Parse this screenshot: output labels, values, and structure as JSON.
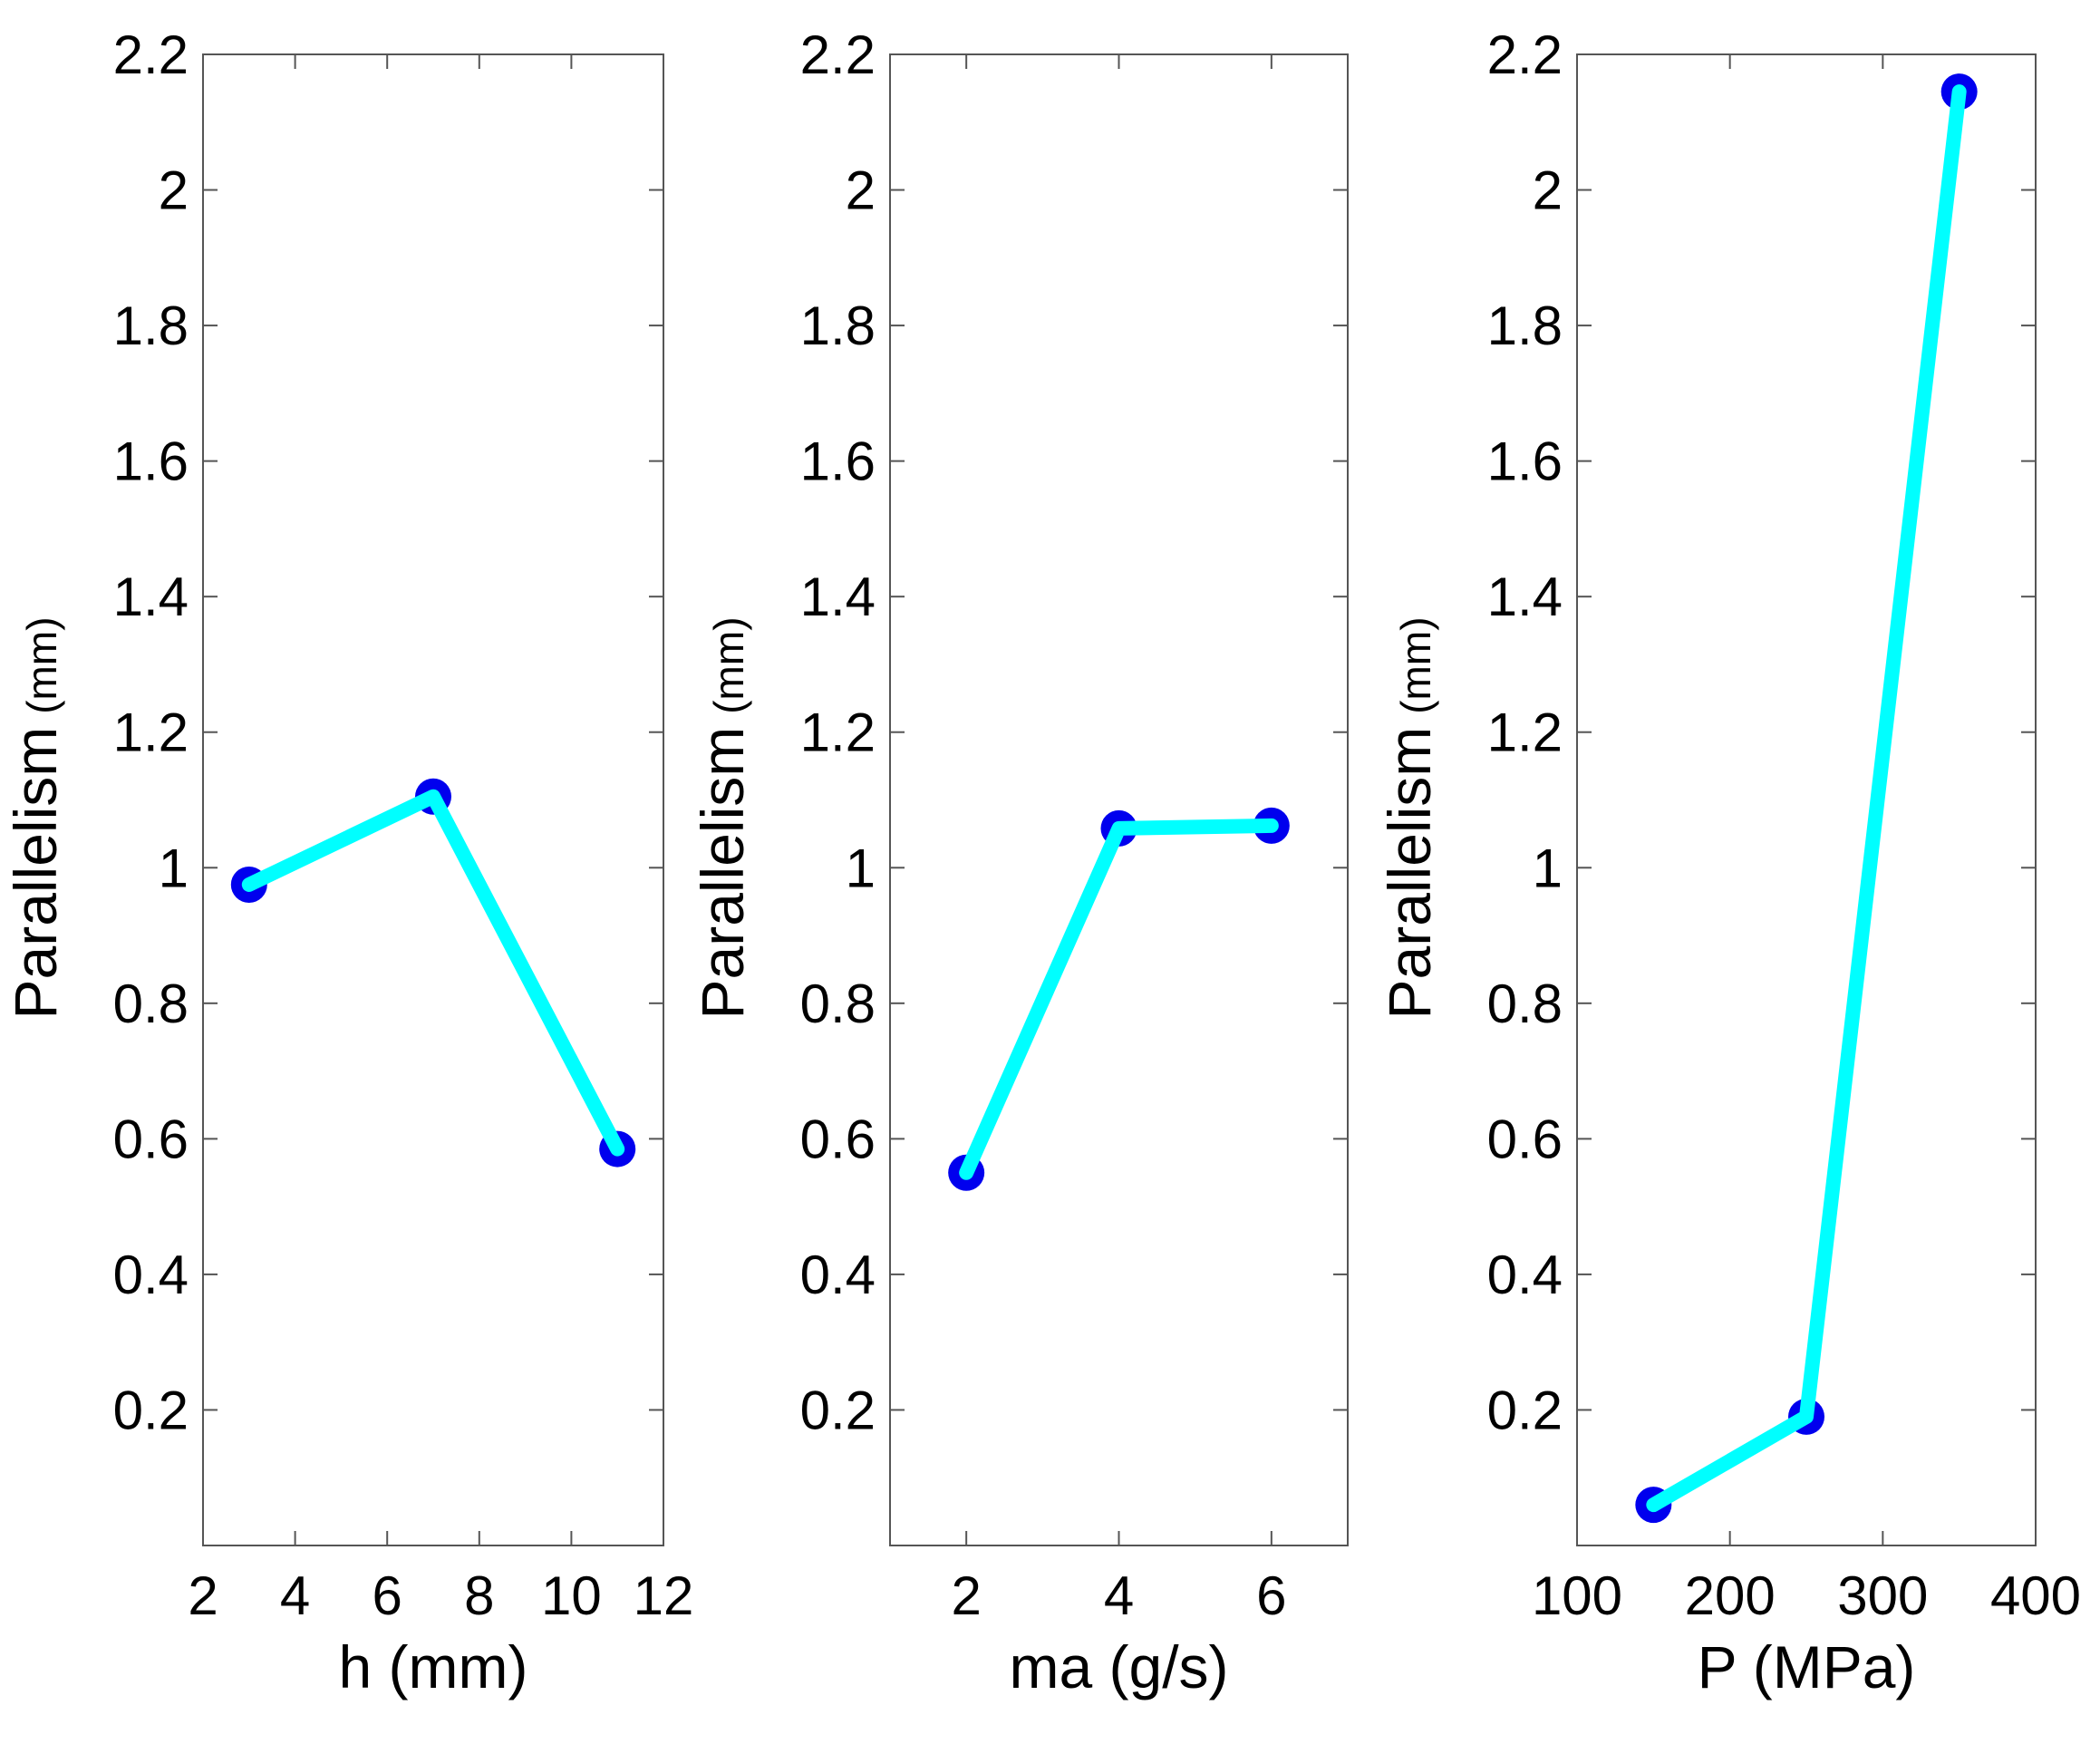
{
  "chart_data": [
    {
      "type": "line",
      "xlabel": "h (mm)",
      "ylabel": "Parallelism",
      "ylabel_unit": "(mm)",
      "xlim": [
        2,
        12
      ],
      "ylim": [
        0,
        2.2
      ],
      "xticks": [
        2,
        4,
        6,
        8,
        10,
        12
      ],
      "yticks": [
        0.2,
        0.4,
        0.6,
        0.8,
        1,
        1.2,
        1.4,
        1.6,
        1.8,
        2,
        2.2
      ],
      "x": [
        3,
        7,
        11
      ],
      "values": [
        0.975,
        1.105,
        0.585
      ],
      "line_color": "#00ffff",
      "marker_color": "#0000ee"
    },
    {
      "type": "line",
      "xlabel": "ma (g/s)",
      "ylabel": "Parallelism",
      "ylabel_unit": "(mm)",
      "xlim": [
        1,
        7
      ],
      "ylim": [
        0,
        2.2
      ],
      "xticks": [
        2,
        4,
        6
      ],
      "yticks": [
        0.2,
        0.4,
        0.6,
        0.8,
        1,
        1.2,
        1.4,
        1.6,
        1.8,
        2,
        2.2
      ],
      "x": [
        2,
        4,
        6
      ],
      "values": [
        0.55,
        1.058,
        1.062
      ],
      "line_color": "#00ffff",
      "marker_color": "#0000ee"
    },
    {
      "type": "line",
      "xlabel": "P (MPa)",
      "ylabel": "Parallelism",
      "ylabel_unit": "(mm)",
      "xlim": [
        100,
        400
      ],
      "ylim": [
        0,
        2.2
      ],
      "xticks": [
        100,
        200,
        300,
        400
      ],
      "yticks": [
        0.2,
        0.4,
        0.6,
        0.8,
        1,
        1.2,
        1.4,
        1.6,
        1.8,
        2,
        2.2
      ],
      "x": [
        150,
        250,
        350
      ],
      "values": [
        0.06,
        0.19,
        2.145
      ],
      "line_color": "#00ffff",
      "marker_color": "#0000ee"
    }
  ]
}
